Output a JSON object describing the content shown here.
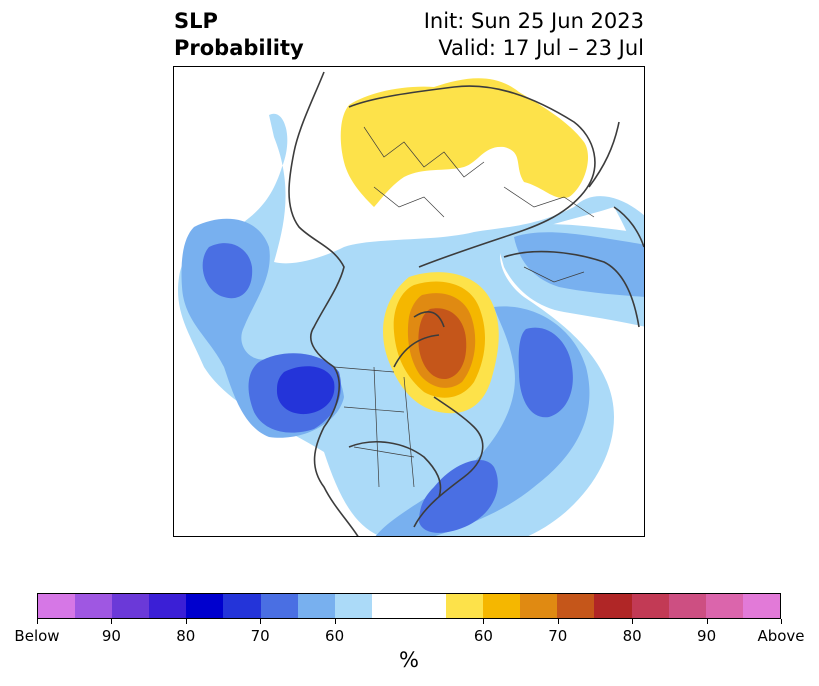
{
  "title": {
    "left_line1": "SLP",
    "left_line2": "Probability",
    "right_line1": "Init: Sun 25 Jun 2023",
    "right_line2": "Valid: 17 Jul – 23 Jul"
  },
  "colorbar": {
    "colors": [
      "#d677e6",
      "#9f57e2",
      "#6b39d8",
      "#3b1fd6",
      "#0000ce",
      "#2434d9",
      "#4a6fe3",
      "#78b0ef",
      "#abdaf8",
      "#ffffff",
      "#ffffff",
      "#fde24a",
      "#f5b700",
      "#e08a12",
      "#c5561a",
      "#b02626",
      "#c23a55",
      "#cd4f82",
      "#db65ac",
      "#e27ad8"
    ],
    "tick_labels": [
      "Below",
      "90",
      "80",
      "70",
      "60",
      "60",
      "70",
      "80",
      "90",
      "Above"
    ],
    "unit_label": "%"
  },
  "map": {
    "colors": {
      "blue_60": "#abdaf8",
      "blue_65": "#78b0ef",
      "blue_70": "#4a6fe3",
      "blue_75": "#2434d9",
      "yellow_60": "#fde24a",
      "orange_65": "#f5b700",
      "orange_70": "#e08a12",
      "brown_75": "#c5561a",
      "coast": "#3c3c3c"
    }
  }
}
